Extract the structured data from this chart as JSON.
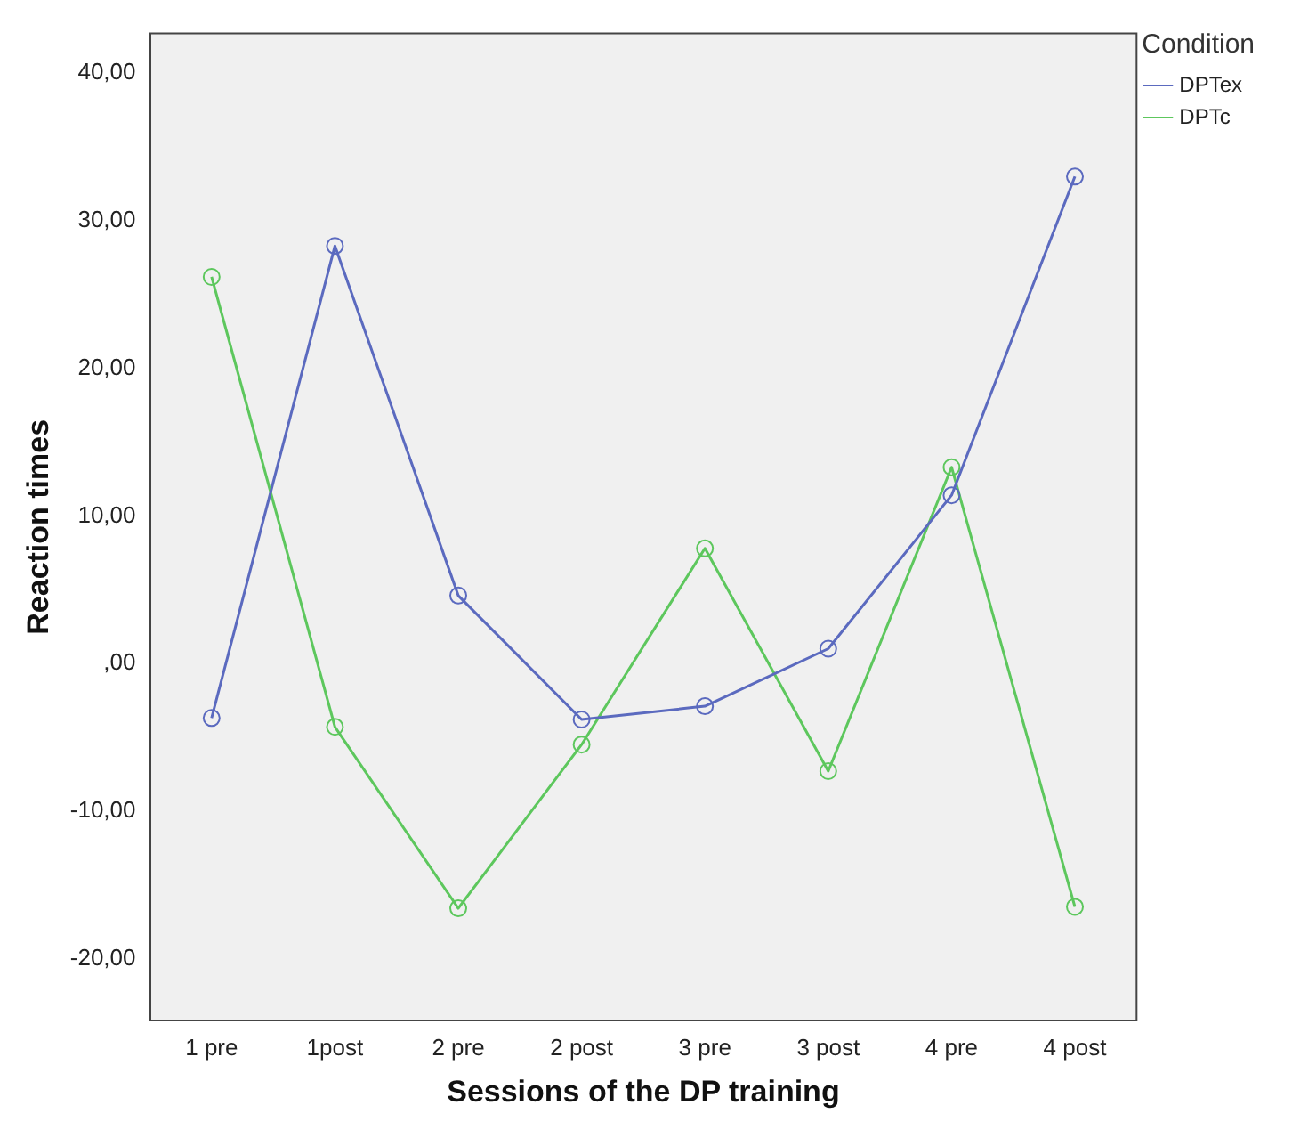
{
  "chart_data": {
    "type": "line",
    "xlabel": "Sessions of the DP training",
    "ylabel": "Reaction times",
    "legend_title": "Condition",
    "categories": [
      "1 pre",
      "1post",
      "2 pre",
      "2 post",
      "3 pre",
      "3 post",
      "4 pre",
      "4 post"
    ],
    "series": [
      {
        "name": "DPTex",
        "color": "#5b6abf",
        "values": [
          -3.7,
          28.3,
          4.6,
          -3.8,
          -2.9,
          1.0,
          11.4,
          33.0
        ]
      },
      {
        "name": "DPTc",
        "color": "#5dc75d",
        "values": [
          26.2,
          -4.3,
          -16.6,
          -5.5,
          7.8,
          -7.3,
          13.3,
          -16.5
        ]
      }
    ],
    "ylim": [
      -24.2,
      42.7
    ],
    "yticks": [
      {
        "value": -20,
        "label": "-20,00"
      },
      {
        "value": -10,
        "label": "-10,00"
      },
      {
        "value": 0,
        "label": ",00"
      },
      {
        "value": 10,
        "label": "10,00"
      },
      {
        "value": 20,
        "label": "20,00"
      },
      {
        "value": 30,
        "label": "30,00"
      },
      {
        "value": 40,
        "label": "40,00"
      }
    ],
    "grid": false,
    "legend": "top right",
    "marker": "circle",
    "line_style": "solid"
  }
}
